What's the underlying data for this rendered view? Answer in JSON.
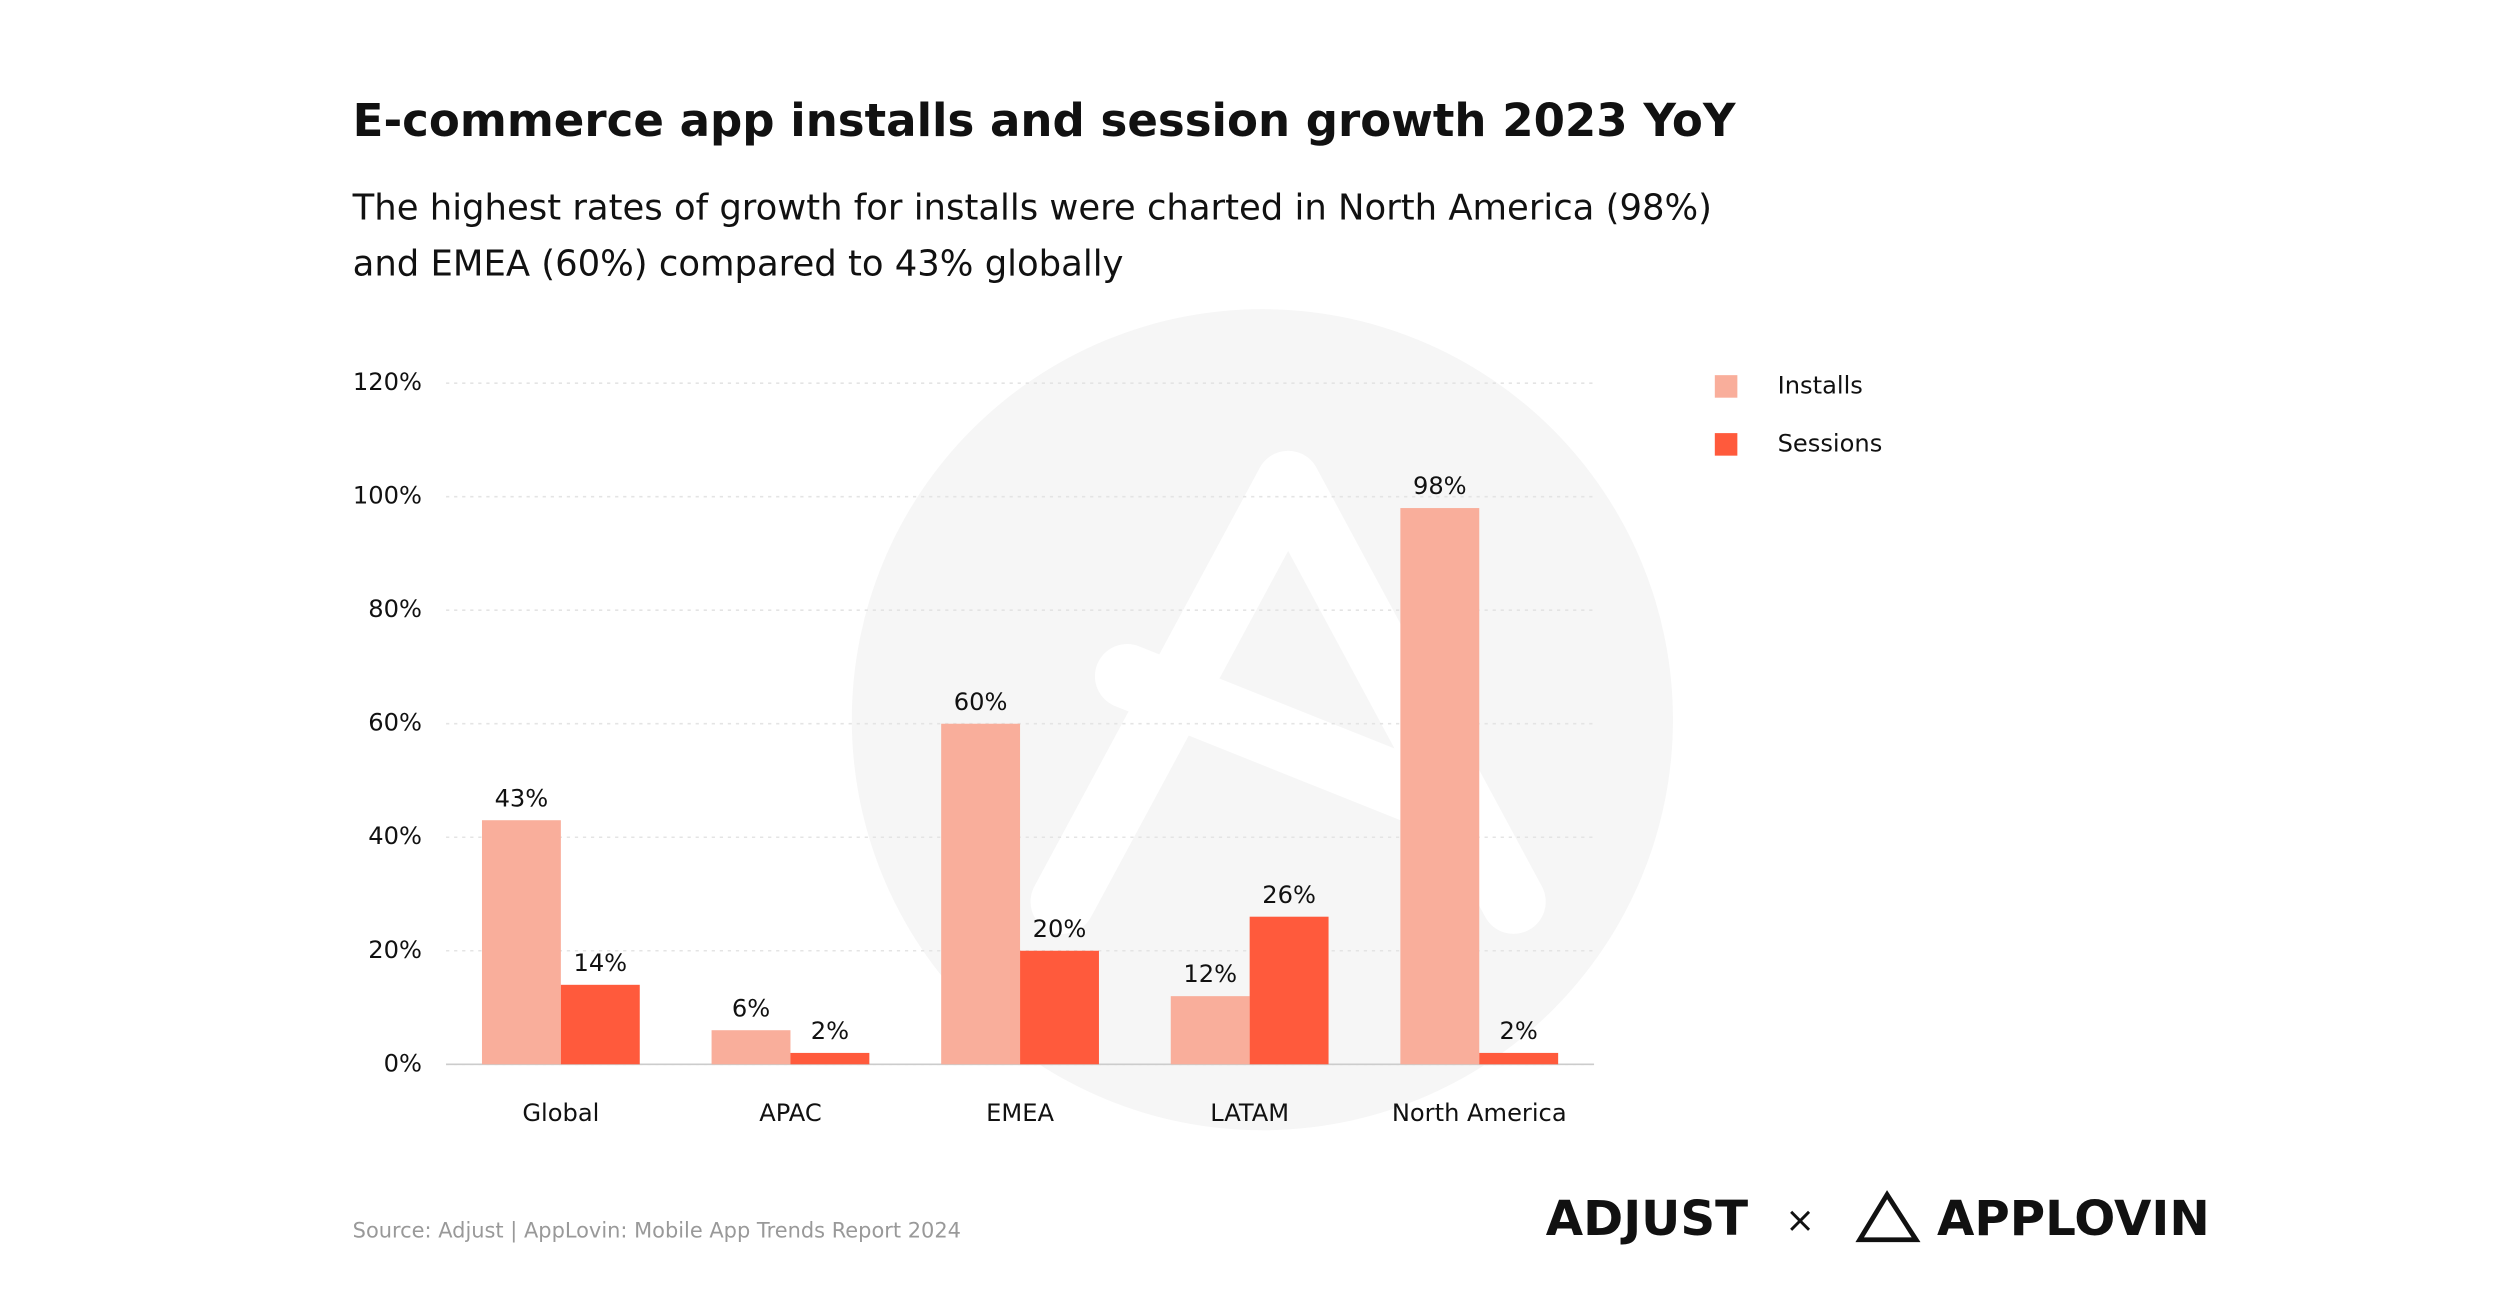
{
  "chart_data": {
    "type": "bar",
    "title": "E-commerce app installs and session growth 2023 YoY",
    "subtitle": [
      "The highest rates of growth for installs were charted in North America (98%)",
      "and EMEA (60%) compared to 43% globally"
    ],
    "categories": [
      "Global",
      "APAC",
      "EMEA",
      "LATAM",
      "North America"
    ],
    "series": [
      {
        "name": "Installs",
        "color": "#f9ae9b",
        "values": [
          43,
          6,
          60,
          12,
          98
        ],
        "value_labels": [
          "43%",
          "6%",
          "60%",
          "12%",
          "98%"
        ]
      },
      {
        "name": "Sessions",
        "color": "#ff5a3c",
        "values": [
          14,
          2,
          20,
          26,
          2
        ],
        "value_labels": [
          "14%",
          "2%",
          "20%",
          "26%",
          "2%"
        ]
      }
    ],
    "ylim": [
      0,
      120
    ],
    "yticks": [
      {
        "value": 0,
        "label": "0%"
      },
      {
        "value": 20,
        "label": "20%"
      },
      {
        "value": 40,
        "label": "40%"
      },
      {
        "value": 60,
        "label": "60%"
      },
      {
        "value": 80,
        "label": "80%"
      },
      {
        "value": 100,
        "label": "100%"
      },
      {
        "value": 120,
        "label": "120%"
      }
    ],
    "grid": true,
    "legend": "right",
    "source": "Source: Adjust | AppLovin: Mobile App Trends Report 2024",
    "branding": {
      "left": "ADJUST",
      "separator": "×",
      "right": "APPLOVIN"
    }
  }
}
